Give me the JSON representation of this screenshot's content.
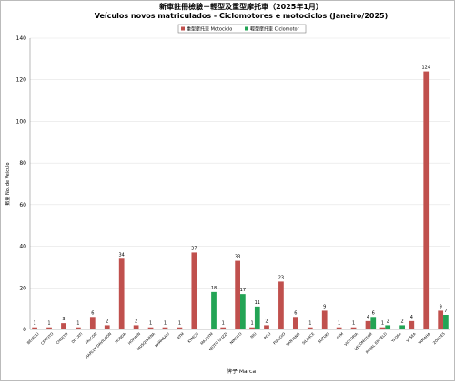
{
  "chart_data": {
    "type": "bar",
    "title": "新車註冊檢驗－輕型及重型摩托車（2025年1月）",
    "subtitle": "Veículos novos matriculados  - Ciclomotores e motociclos (Janeiro/2025)",
    "x_label": "牌子 Marca",
    "y_label": "數量 No. de Veículo",
    "categories": [
      "BENELLI",
      "CFMOTO",
      "CHEETO",
      "DUCATI",
      "FALCON",
      "HARLEY DAVIDSON",
      "HONDA",
      "HORWIN",
      "HUSQVARNA",
      "KAWASAKI",
      "KTM",
      "KYMCO",
      "MAXSYM",
      "MOTO GUZZI",
      "NIMOTO",
      "NIU",
      "PGO",
      "PIAGGIO",
      "SANYANG",
      "SILENCE",
      "SUZUKI",
      "SYM",
      "VICTORIA",
      "VELOMOTOR",
      "ROYAL ENFIELD",
      "YADEA",
      "VASEA",
      "YAMAHA",
      "ZONTES"
    ],
    "series": [
      {
        "name": "重型摩托車 Motociclo",
        "color": "#c0504d",
        "values": [
          1,
          1,
          3,
          1,
          6,
          2,
          34,
          2,
          1,
          1,
          1,
          37,
          null,
          1,
          33,
          1,
          2,
          23,
          6,
          1,
          9,
          1,
          1,
          4,
          1,
          null,
          4,
          124,
          9
        ]
      },
      {
        "name": "輕型摩托車 Ciclomotor",
        "color": "#23a455",
        "values": [
          null,
          null,
          null,
          null,
          null,
          null,
          null,
          null,
          null,
          null,
          null,
          null,
          18,
          null,
          17,
          11,
          null,
          null,
          null,
          null,
          null,
          null,
          null,
          6,
          2,
          2,
          null,
          null,
          7
        ]
      }
    ],
    "ylim": [
      0,
      140
    ],
    "yticks": [
      0,
      20,
      40,
      60,
      80,
      100,
      120,
      140
    ],
    "grid": true,
    "legend": "top"
  }
}
